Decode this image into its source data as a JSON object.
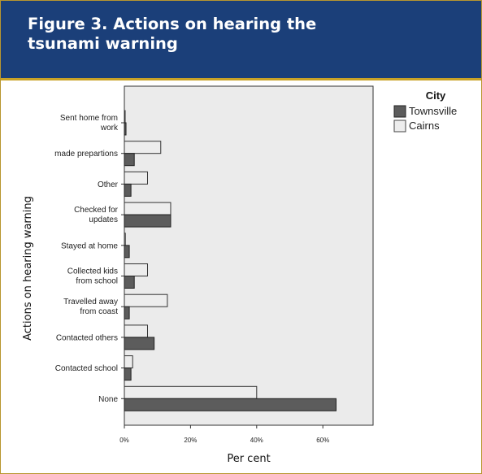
{
  "figure": {
    "title": "Figure 3. Actions on hearing the tsunami warning"
  },
  "colors": {
    "header_bg": "#1b3f79",
    "accent": "#c9a227",
    "plot_bg": "#ebebeb",
    "townsville": "#5c5c5c",
    "cairns": "#ededed"
  },
  "chart_data": {
    "type": "bar",
    "orientation": "horizontal",
    "ylabel": "Actions on hearing warning",
    "xlabel": "Per cent",
    "xlim": [
      0,
      75
    ],
    "xticks": [
      {
        "value": 0,
        "label": "0%"
      },
      {
        "value": 20,
        "label": "20%"
      },
      {
        "value": 40,
        "label": "40%"
      },
      {
        "value": 60,
        "label": "60%"
      }
    ],
    "grid": false,
    "legend": {
      "title": "City",
      "position": "top-right"
    },
    "categories": [
      [
        "Sent home from",
        "work"
      ],
      [
        "made prepartions"
      ],
      [
        "Other"
      ],
      [
        "Checked for",
        "updates"
      ],
      [
        "Stayed at home"
      ],
      [
        "Collected kids",
        "from school"
      ],
      [
        "Travelled away",
        "from coast"
      ],
      [
        "Contacted others"
      ],
      [
        "Contacted school"
      ],
      [
        "None"
      ]
    ],
    "series": [
      {
        "name": "Townsville",
        "color": "#5c5c5c",
        "values": [
          0.5,
          3,
          2,
          14,
          1.5,
          3,
          1.5,
          9,
          2,
          64
        ]
      },
      {
        "name": "Cairns",
        "color": "#ededed",
        "values": [
          0.2,
          11,
          7,
          14,
          0.3,
          7,
          13,
          7,
          2.5,
          40
        ]
      }
    ]
  }
}
